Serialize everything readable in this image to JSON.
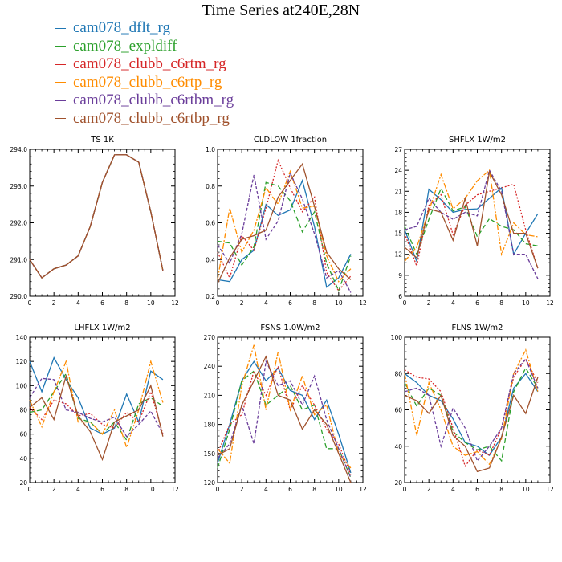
{
  "title": "Time Series at240E,28N",
  "legend": [
    {
      "name": "cam078_dflt_rg",
      "color": "#1f77b4"
    },
    {
      "name": "cam078_expldiff",
      "color": "#2ca02c"
    },
    {
      "name": "cam078_clubb_c6rtm_rg",
      "color": "#d62728"
    },
    {
      "name": "cam078_clubb_c6rtp_rg",
      "color": "#ff8c00"
    },
    {
      "name": "cam078_clubb_c6rtbm_rg",
      "color": "#6a3d9a"
    },
    {
      "name": "cam078_clubb_c6rtbp_rg",
      "color": "#a0522d"
    }
  ],
  "chart_data": [
    {
      "type": "line",
      "title": "TS   1K",
      "x": [
        0,
        1,
        2,
        3,
        4,
        5,
        6,
        7,
        8,
        9,
        10,
        11
      ],
      "xlim": [
        0,
        12
      ],
      "xticks": [
        "0",
        "2",
        "4",
        "6",
        "8",
        "10",
        "12"
      ],
      "ylim": [
        290.0,
        294.0
      ],
      "yticks": [
        "290.0",
        "291.0",
        "292.0",
        "293.0",
        "294.0"
      ],
      "series": [
        {
          "name": "cam078_dflt_rg",
          "values": [
            291.0,
            290.5,
            290.75,
            290.85,
            291.1,
            291.9,
            293.1,
            293.85,
            293.85,
            293.65,
            292.3,
            290.7
          ]
        },
        {
          "name": "cam078_expldiff",
          "values": [
            291.0,
            290.5,
            290.75,
            290.85,
            291.1,
            291.9,
            293.1,
            293.85,
            293.85,
            293.65,
            292.3,
            290.7
          ]
        },
        {
          "name": "cam078_clubb_c6rtm_rg",
          "values": [
            291.0,
            290.5,
            290.75,
            290.85,
            291.1,
            291.9,
            293.1,
            293.85,
            293.85,
            293.65,
            292.3,
            290.7
          ]
        },
        {
          "name": "cam078_clubb_c6rtp_rg",
          "values": [
            291.0,
            290.5,
            290.75,
            290.85,
            291.1,
            291.9,
            293.1,
            293.85,
            293.85,
            293.65,
            292.3,
            290.7
          ]
        },
        {
          "name": "cam078_clubb_c6rtbm_rg",
          "values": [
            291.0,
            290.5,
            290.75,
            290.85,
            291.1,
            291.9,
            293.1,
            293.85,
            293.85,
            293.65,
            292.3,
            290.7
          ]
        },
        {
          "name": "cam078_clubb_c6rtbp_rg",
          "values": [
            291.0,
            290.5,
            290.75,
            290.85,
            291.1,
            291.9,
            293.1,
            293.85,
            293.85,
            293.65,
            292.3,
            290.7
          ]
        }
      ]
    },
    {
      "type": "line",
      "title": "CLDLOW   1fraction",
      "x": [
        0,
        1,
        2,
        3,
        4,
        5,
        6,
        7,
        8,
        9,
        10,
        11
      ],
      "xlim": [
        0,
        12
      ],
      "xticks": [
        "0",
        "2",
        "4",
        "6",
        "8",
        "10",
        "12"
      ],
      "ylim": [
        0.2,
        1.0
      ],
      "yticks": [
        "0.2",
        "0.4",
        "0.6",
        "0.8",
        "1.0"
      ],
      "series": [
        {
          "name": "cam078_dflt_rg",
          "values": [
            0.29,
            0.28,
            0.4,
            0.45,
            0.7,
            0.64,
            0.67,
            0.83,
            0.58,
            0.25,
            0.3,
            0.43
          ]
        },
        {
          "name": "cam078_expldiff",
          "values": [
            0.5,
            0.49,
            0.37,
            0.47,
            0.82,
            0.8,
            0.72,
            0.55,
            0.66,
            0.38,
            0.23,
            0.42
          ]
        },
        {
          "name": "cam078_clubb_c6rtm_rg",
          "values": [
            0.44,
            0.3,
            0.53,
            0.45,
            0.68,
            0.94,
            0.79,
            0.66,
            0.74,
            0.33,
            0.23,
            0.31
          ]
        },
        {
          "name": "cam078_clubb_c6rtp_rg",
          "values": [
            0.29,
            0.68,
            0.44,
            0.56,
            0.79,
            0.7,
            0.88,
            0.68,
            0.69,
            0.42,
            0.28,
            0.35
          ]
        },
        {
          "name": "cam078_clubb_c6rtbm_rg",
          "values": [
            0.48,
            0.38,
            0.54,
            0.86,
            0.51,
            0.61,
            0.87,
            0.73,
            0.54,
            0.3,
            0.34,
            0.22
          ]
        },
        {
          "name": "cam078_clubb_c6rtbp_rg",
          "values": [
            0.27,
            0.41,
            0.51,
            0.53,
            0.56,
            0.74,
            0.83,
            0.92,
            0.69,
            0.44,
            0.35,
            0.29
          ]
        }
      ]
    },
    {
      "type": "line",
      "title": "SHFLX   1W/m2",
      "x": [
        0,
        1,
        2,
        3,
        4,
        5,
        6,
        7,
        8,
        9,
        10,
        11
      ],
      "xlim": [
        0,
        12
      ],
      "xticks": [
        "0",
        "2",
        "4",
        "6",
        "8",
        "10",
        "12"
      ],
      "ylim": [
        6,
        27
      ],
      "yticks": [
        "6",
        "9",
        "12",
        "15",
        "18",
        "21",
        "24",
        "27"
      ],
      "series": [
        {
          "name": "cam078_dflt_rg",
          "values": [
            15.5,
            11.0,
            21.3,
            19.8,
            18.0,
            18.4,
            18.5,
            20.0,
            21.5,
            12.0,
            15.0,
            17.8
          ]
        },
        {
          "name": "cam078_expldiff",
          "values": [
            16.0,
            12.0,
            17.0,
            21.4,
            18.2,
            18.8,
            14.5,
            17.1,
            16.0,
            15.5,
            13.5,
            13.2
          ]
        },
        {
          "name": "cam078_clubb_c6rtm_rg",
          "values": [
            15.0,
            10.3,
            19.0,
            20.5,
            14.8,
            19.0,
            20.5,
            21.0,
            21.5,
            22.0,
            15.5,
            10.0
          ]
        },
        {
          "name": "cam078_clubb_c6rtp_rg",
          "values": [
            11.0,
            13.0,
            18.2,
            23.4,
            18.5,
            20.0,
            22.5,
            24.0,
            12.0,
            16.5,
            14.8,
            14.5
          ]
        },
        {
          "name": "cam078_clubb_c6rtbm_rg",
          "values": [
            15.5,
            16.0,
            20.0,
            18.0,
            17.0,
            18.0,
            17.5,
            24.0,
            21.0,
            12.0,
            12.0,
            8.5
          ]
        },
        {
          "name": "cam078_clubb_c6rtbp_rg",
          "values": [
            13.0,
            11.5,
            18.5,
            18.0,
            14.0,
            20.0,
            13.2,
            23.8,
            20.5,
            15.0,
            15.0,
            10.0
          ]
        }
      ]
    },
    {
      "type": "line",
      "title": "LHFLX   1W/m2",
      "x": [
        0,
        1,
        2,
        3,
        4,
        5,
        6,
        7,
        8,
        9,
        10,
        11
      ],
      "xlim": [
        0,
        12
      ],
      "xticks": [
        "0",
        "2",
        "4",
        "6",
        "8",
        "10",
        "12"
      ],
      "ylim": [
        20,
        140
      ],
      "yticks": [
        "20",
        "40",
        "60",
        "80",
        "100",
        "120",
        "140"
      ],
      "series": [
        {
          "name": "cam078_dflt_rg",
          "values": [
            120,
            95,
            123,
            105,
            90,
            65,
            60,
            65,
            93,
            70,
            112,
            105
          ]
        },
        {
          "name": "cam078_expldiff",
          "values": [
            78,
            80,
            95,
            110,
            73,
            70,
            60,
            70,
            55,
            85,
            90,
            83
          ]
        },
        {
          "name": "cam078_clubb_c6rtm_rg",
          "values": [
            82,
            72,
            88,
            85,
            75,
            77,
            68,
            65,
            78,
            70,
            95,
            60
          ]
        },
        {
          "name": "cam078_clubb_c6rtp_rg",
          "values": [
            88,
            66,
            95,
            120,
            70,
            70,
            60,
            80,
            49,
            80,
            120,
            86
          ]
        },
        {
          "name": "cam078_clubb_c6rtbm_rg",
          "values": [
            90,
            106,
            105,
            80,
            78,
            73,
            70,
            74,
            58,
            68,
            79,
            60
          ]
        },
        {
          "name": "cam078_clubb_c6rtbp_rg",
          "values": [
            82,
            90,
            72,
            108,
            75,
            62,
            39,
            70,
            75,
            80,
            100,
            58
          ]
        }
      ]
    },
    {
      "type": "line",
      "title": "FSNS   1.0W/m2",
      "x": [
        0,
        1,
        2,
        3,
        4,
        5,
        6,
        7,
        8,
        9,
        10,
        11
      ],
      "xlim": [
        0,
        12
      ],
      "xticks": [
        "0",
        "2",
        "4",
        "6",
        "8",
        "10",
        "12"
      ],
      "ylim": [
        120,
        270
      ],
      "yticks": [
        "120",
        "150",
        "180",
        "210",
        "240",
        "270"
      ],
      "series": [
        {
          "name": "cam078_dflt_rg",
          "values": [
            140,
            180,
            225,
            245,
            225,
            238,
            215,
            210,
            185,
            205,
            170,
            130
          ]
        },
        {
          "name": "cam078_expldiff",
          "values": [
            135,
            175,
            225,
            235,
            200,
            210,
            220,
            195,
            200,
            155,
            155,
            125
          ]
        },
        {
          "name": "cam078_clubb_c6rtm_rg",
          "values": [
            150,
            180,
            190,
            235,
            210,
            240,
            195,
            220,
            200,
            175,
            160,
            128
          ]
        },
        {
          "name": "cam078_clubb_c6rtp_rg",
          "values": [
            155,
            140,
            220,
            262,
            195,
            255,
            195,
            230,
            190,
            200,
            150,
            135
          ]
        },
        {
          "name": "cam078_clubb_c6rtbm_rg",
          "values": [
            145,
            160,
            200,
            160,
            245,
            220,
            225,
            200,
            230,
            185,
            155,
            125
          ]
        },
        {
          "name": "cam078_clubb_c6rtbp_rg",
          "values": [
            148,
            155,
            200,
            225,
            250,
            210,
            205,
            175,
            195,
            180,
            150,
            120
          ]
        }
      ]
    },
    {
      "type": "line",
      "title": "FLNS   1W/m2",
      "x": [
        0,
        1,
        2,
        3,
        4,
        5,
        6,
        7,
        8,
        9,
        10,
        11
      ],
      "xlim": [
        0,
        12
      ],
      "xticks": [
        "0",
        "2",
        "4",
        "6",
        "8",
        "10",
        "12"
      ],
      "ylim": [
        20,
        100
      ],
      "yticks": [
        "20",
        "40",
        "60",
        "80",
        "100"
      ],
      "series": [
        {
          "name": "cam078_dflt_rg",
          "values": [
            80,
            75,
            68,
            65,
            55,
            42,
            40,
            35,
            45,
            72,
            80,
            70
          ]
        },
        {
          "name": "cam078_expldiff",
          "values": [
            75,
            62,
            72,
            68,
            48,
            42,
            38,
            40,
            32,
            70,
            83,
            72
          ]
        },
        {
          "name": "cam078_clubb_c6rtm_rg",
          "values": [
            82,
            78,
            77,
            70,
            50,
            29,
            38,
            35,
            50,
            78,
            88,
            75
          ]
        },
        {
          "name": "cam078_clubb_c6rtp_rg",
          "values": [
            80,
            46,
            75,
            60,
            40,
            35,
            37,
            30,
            44,
            80,
            93,
            70
          ]
        },
        {
          "name": "cam078_clubb_c6rtbm_rg",
          "values": [
            70,
            72,
            68,
            40,
            61,
            50,
            32,
            40,
            50,
            80,
            88,
            72
          ]
        },
        {
          "name": "cam078_clubb_c6rtbp_rg",
          "values": [
            68,
            65,
            58,
            68,
            46,
            40,
            26,
            28,
            45,
            68,
            58,
            78
          ]
        }
      ]
    }
  ]
}
